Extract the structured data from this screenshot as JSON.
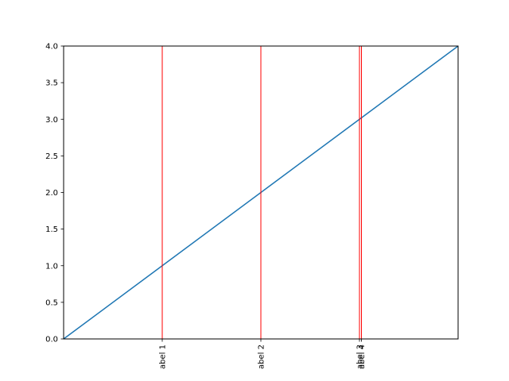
{
  "chart_data": {
    "type": "line",
    "xlim": [
      0,
      4
    ],
    "ylim": [
      0,
      4
    ],
    "yticks": [
      0.0,
      0.5,
      1.0,
      1.5,
      2.0,
      2.5,
      3.0,
      3.5,
      4.0
    ],
    "ytick_labels": [
      "0.0",
      "0.5",
      "1.0",
      "1.5",
      "2.0",
      "2.5",
      "3.0",
      "3.5",
      "4.0"
    ],
    "series": [
      {
        "x": [
          0,
          1,
          2,
          3,
          4
        ],
        "y": [
          0,
          1,
          2,
          3,
          4
        ],
        "color": "#1f77b4"
      }
    ],
    "vlines": {
      "color": "#ff0000",
      "x": [
        1,
        2,
        3,
        3.02
      ]
    },
    "xticks": [
      1,
      2,
      3,
      3.02
    ],
    "xtick_labels": [
      "abel 1",
      "abel 2",
      "abel 3",
      "abel 4"
    ],
    "grid": false
  }
}
